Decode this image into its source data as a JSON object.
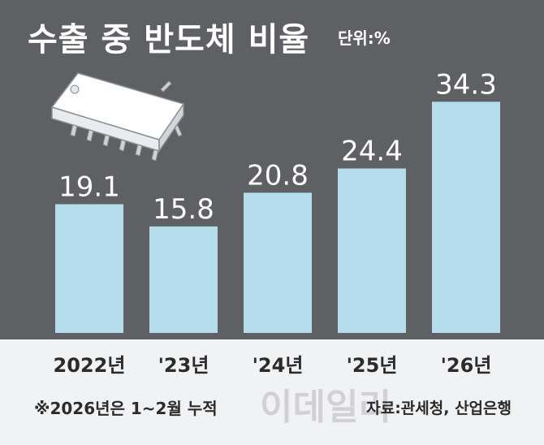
{
  "chart_data": {
    "type": "bar",
    "title": "수출 중 반도체 비율",
    "unit": "단위:%",
    "categories": [
      "2022년",
      "'23년",
      "'24년",
      "'25년",
      "'26년"
    ],
    "values": [
      19.1,
      15.8,
      20.8,
      24.4,
      34.3
    ],
    "value_labels": [
      "19.1",
      "15.8",
      "20.8",
      "24.4",
      "34.3"
    ],
    "ylim": [
      0,
      36
    ],
    "grid": false,
    "legend": "none",
    "footnote": "※2026년은 1~2월 누적",
    "source": "자료:관세청, 산업은행",
    "watermark": "이데일리",
    "colors": {
      "background_top": "#5f6063",
      "background_bottom": "#f1f2f4",
      "bar": "#b4dcea",
      "text_light": "#ffffff",
      "text_dark": "#2b2b2b"
    },
    "icons": [
      "microchip-icon"
    ]
  }
}
